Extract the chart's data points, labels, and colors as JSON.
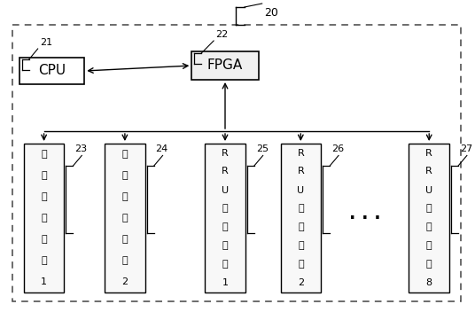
{
  "outer_label": "20",
  "cpu_label": "CPU",
  "cpu_num": "21",
  "fpga_label": "FPGA",
  "fpga_num": "22",
  "boxes": [
    {
      "lines": [
        "级联扩展光口1"
      ],
      "top_line": "级",
      "chars": [
        "级",
        "联",
        "扩",
        "展",
        "光",
        "口",
        "1"
      ],
      "num": "23"
    },
    {
      "chars": [
        "级",
        "联",
        "扩",
        "展",
        "光",
        "口",
        "2"
      ],
      "num": "24"
    },
    {
      "chars": [
        "R",
        "R",
        "U",
        "扩",
        "展",
        "光",
        "口",
        "1"
      ],
      "num": "25"
    },
    {
      "chars": [
        "R",
        "R",
        "U",
        "扩",
        "展",
        "光",
        "口",
        "2"
      ],
      "num": "26"
    },
    {
      "chars": [
        "R",
        "R",
        "U",
        "扩",
        "展",
        "光",
        "口",
        "8"
      ],
      "num": "27"
    }
  ],
  "bg_color": "#ffffff"
}
